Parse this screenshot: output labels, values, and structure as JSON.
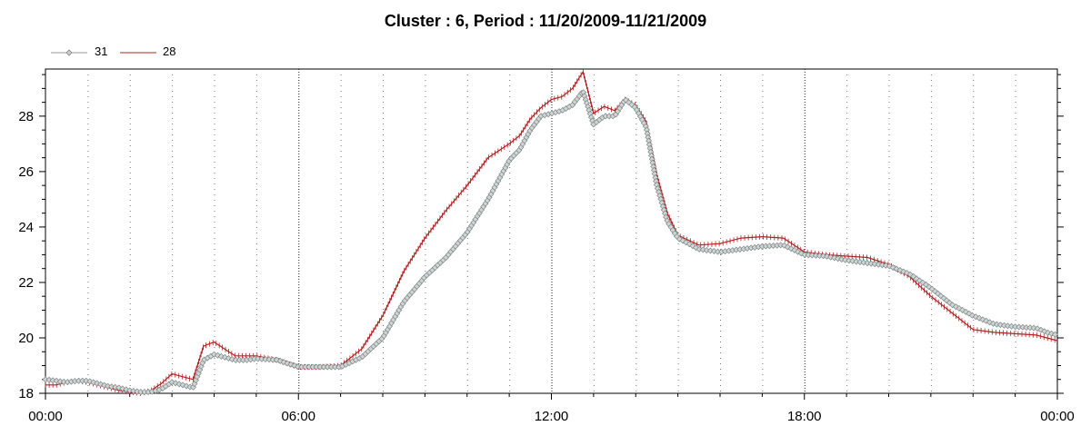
{
  "chart_data": {
    "type": "line",
    "title": "Cluster : 6, Period : 11/20/2009-11/21/2009",
    "xlabel": "",
    "ylabel": "",
    "x_range_hours": [
      0,
      24
    ],
    "ylim": [
      18,
      29.7
    ],
    "x_tick_labels": [
      "00:00",
      "06:00",
      "12:00",
      "18:00",
      "00:00"
    ],
    "y_ticks": [
      18,
      20,
      22,
      24,
      26,
      28
    ],
    "y_tick_labels": [
      "18",
      "20",
      "22",
      "24",
      "26",
      "28"
    ],
    "grid": "vertical dotted",
    "legend_position": "top-left",
    "series": [
      {
        "name": "31",
        "color": "#999999",
        "marker": "diamond",
        "points": [
          [
            "00:00",
            18.5
          ],
          [
            "00:15",
            18.45
          ],
          [
            "00:30",
            18.4
          ],
          [
            "00:45",
            18.45
          ],
          [
            "01:00",
            18.45
          ],
          [
            "01:15",
            18.35
          ],
          [
            "01:30",
            18.25
          ],
          [
            "01:45",
            18.2
          ],
          [
            "02:00",
            18.1
          ],
          [
            "02:15",
            18.05
          ],
          [
            "02:30",
            18.05
          ],
          [
            "02:45",
            18.15
          ],
          [
            "03:00",
            18.4
          ],
          [
            "03:15",
            18.3
          ],
          [
            "03:30",
            18.2
          ],
          [
            "03:45",
            19.2
          ],
          [
            "04:00",
            19.4
          ],
          [
            "04:15",
            19.3
          ],
          [
            "04:30",
            19.2
          ],
          [
            "04:45",
            19.2
          ],
          [
            "05:00",
            19.25
          ],
          [
            "05:30",
            19.2
          ],
          [
            "06:00",
            18.95
          ],
          [
            "06:30",
            18.95
          ],
          [
            "07:00",
            18.95
          ],
          [
            "07:30",
            19.3
          ],
          [
            "08:00",
            20.0
          ],
          [
            "08:30",
            21.3
          ],
          [
            "09:00",
            22.2
          ],
          [
            "09:30",
            22.9
          ],
          [
            "10:00",
            23.8
          ],
          [
            "10:30",
            25.0
          ],
          [
            "11:00",
            26.4
          ],
          [
            "11:15",
            26.8
          ],
          [
            "11:30",
            27.5
          ],
          [
            "11:45",
            28.0
          ],
          [
            "12:00",
            28.1
          ],
          [
            "12:15",
            28.2
          ],
          [
            "12:30",
            28.4
          ],
          [
            "12:45",
            28.9
          ],
          [
            "13:00",
            27.7
          ],
          [
            "13:15",
            28.0
          ],
          [
            "13:30",
            28.0
          ],
          [
            "13:45",
            28.6
          ],
          [
            "14:00",
            28.3
          ],
          [
            "14:15",
            27.6
          ],
          [
            "14:30",
            25.5
          ],
          [
            "14:45",
            24.2
          ],
          [
            "15:00",
            23.6
          ],
          [
            "15:30",
            23.2
          ],
          [
            "16:00",
            23.1
          ],
          [
            "16:30",
            23.2
          ],
          [
            "17:00",
            23.3
          ],
          [
            "17:30",
            23.35
          ],
          [
            "18:00",
            23.0
          ],
          [
            "18:30",
            22.95
          ],
          [
            "19:00",
            22.8
          ],
          [
            "19:30",
            22.7
          ],
          [
            "20:00",
            22.6
          ],
          [
            "20:30",
            22.3
          ],
          [
            "21:00",
            21.8
          ],
          [
            "21:30",
            21.2
          ],
          [
            "22:00",
            20.8
          ],
          [
            "22:30",
            20.5
          ],
          [
            "23:00",
            20.4
          ],
          [
            "23:30",
            20.35
          ],
          [
            "23:45",
            20.2
          ],
          [
            "24:00",
            20.1
          ]
        ]
      },
      {
        "name": "28",
        "color": "#b22222",
        "marker": "tick",
        "points": [
          [
            "00:00",
            18.3
          ],
          [
            "00:15",
            18.3
          ],
          [
            "00:30",
            18.4
          ],
          [
            "00:45",
            18.45
          ],
          [
            "01:00",
            18.4
          ],
          [
            "01:15",
            18.3
          ],
          [
            "01:30",
            18.2
          ],
          [
            "01:45",
            18.1
          ],
          [
            "02:00",
            18.05
          ],
          [
            "02:15",
            18.0
          ],
          [
            "02:30",
            18.1
          ],
          [
            "02:45",
            18.35
          ],
          [
            "03:00",
            18.7
          ],
          [
            "03:15",
            18.6
          ],
          [
            "03:30",
            18.5
          ],
          [
            "03:45",
            19.7
          ],
          [
            "04:00",
            19.85
          ],
          [
            "04:15",
            19.6
          ],
          [
            "04:30",
            19.35
          ],
          [
            "04:45",
            19.35
          ],
          [
            "05:00",
            19.35
          ],
          [
            "05:30",
            19.2
          ],
          [
            "06:00",
            18.95
          ],
          [
            "06:30",
            18.95
          ],
          [
            "07:00",
            19.0
          ],
          [
            "07:30",
            19.6
          ],
          [
            "08:00",
            20.8
          ],
          [
            "08:30",
            22.4
          ],
          [
            "09:00",
            23.6
          ],
          [
            "09:30",
            24.6
          ],
          [
            "10:00",
            25.5
          ],
          [
            "10:30",
            26.5
          ],
          [
            "11:00",
            27.0
          ],
          [
            "11:15",
            27.3
          ],
          [
            "11:30",
            27.9
          ],
          [
            "11:45",
            28.3
          ],
          [
            "12:00",
            28.6
          ],
          [
            "12:15",
            28.7
          ],
          [
            "12:30",
            29.0
          ],
          [
            "12:45",
            29.6
          ],
          [
            "13:00",
            28.1
          ],
          [
            "13:15",
            28.35
          ],
          [
            "13:30",
            28.2
          ],
          [
            "13:45",
            28.6
          ],
          [
            "14:00",
            28.4
          ],
          [
            "14:15",
            27.8
          ],
          [
            "14:30",
            25.9
          ],
          [
            "14:45",
            24.5
          ],
          [
            "15:00",
            23.7
          ],
          [
            "15:30",
            23.35
          ],
          [
            "16:00",
            23.4
          ],
          [
            "16:30",
            23.6
          ],
          [
            "17:00",
            23.65
          ],
          [
            "17:30",
            23.6
          ],
          [
            "18:00",
            23.1
          ],
          [
            "18:30",
            23.0
          ],
          [
            "19:00",
            22.95
          ],
          [
            "19:30",
            22.9
          ],
          [
            "20:00",
            22.65
          ],
          [
            "20:30",
            22.2
          ],
          [
            "21:00",
            21.5
          ],
          [
            "21:30",
            20.9
          ],
          [
            "22:00",
            20.3
          ],
          [
            "22:30",
            20.2
          ],
          [
            "23:00",
            20.15
          ],
          [
            "23:30",
            20.1
          ],
          [
            "23:45",
            20.0
          ],
          [
            "24:00",
            19.9
          ]
        ]
      }
    ]
  }
}
